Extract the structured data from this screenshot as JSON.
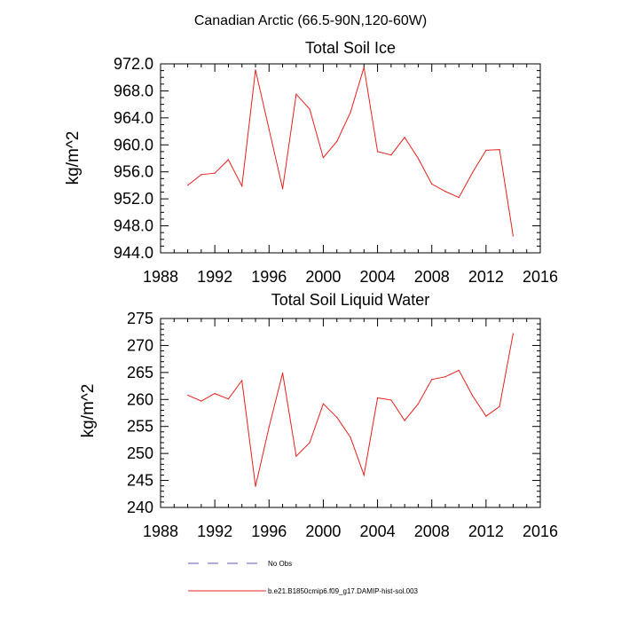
{
  "figure": {
    "title": "Canadian Arctic (66.5-90N,120-60W)"
  },
  "legend": [
    {
      "label": "No Obs",
      "color": "#5a5ab4",
      "dash": "dashed"
    },
    {
      "label": "b.e21.B1850cmip6.f09_g17.DAMIP-hist-sol.003",
      "color": "#e8201c",
      "dash": "solid"
    }
  ],
  "chart_data": [
    {
      "type": "line",
      "title": "Total Soil Ice",
      "xlabel": "",
      "ylabel": "kg/m^2",
      "xlim": [
        1988,
        2016
      ],
      "ylim": [
        944,
        972
      ],
      "xticks": [
        1988,
        1992,
        1996,
        2000,
        2004,
        2008,
        2012,
        2016
      ],
      "xticklabels": [
        "1988",
        "1992",
        "1996",
        "2000",
        "2004",
        "2008",
        "2012",
        "2016"
      ],
      "xminor_step": 1,
      "yticks": [
        944,
        948,
        952,
        956,
        960,
        964,
        968,
        972
      ],
      "yticklabels": [
        "944.0",
        "948.0",
        "952.0",
        "956.0",
        "960.0",
        "964.0",
        "968.0",
        "972.0"
      ],
      "yminor_step": 1,
      "grid": false,
      "series": [
        {
          "color": "#e8201c",
          "x": [
            1990,
            1991,
            1992,
            1993,
            1994,
            1995,
            1996,
            1997,
            1998,
            1999,
            2000,
            2001,
            2002,
            2003,
            2004,
            2005,
            2006,
            2007,
            2008,
            2009,
            2010,
            2011,
            2012,
            2013,
            2014
          ],
          "y": [
            954.0,
            955.6,
            955.8,
            957.8,
            953.9,
            971.1,
            962.3,
            953.5,
            967.5,
            965.3,
            958.1,
            960.5,
            964.8,
            971.5,
            959.0,
            958.5,
            961.1,
            958.0,
            954.2,
            953.1,
            952.2,
            955.9,
            959.2,
            959.3,
            946.5
          ]
        }
      ]
    },
    {
      "type": "line",
      "title": "Total Soil Liquid Water",
      "xlabel": "",
      "ylabel": "kg/m^2",
      "xlim": [
        1988,
        2016
      ],
      "ylim": [
        240,
        275
      ],
      "xticks": [
        1988,
        1992,
        1996,
        2000,
        2004,
        2008,
        2012,
        2016
      ],
      "xticklabels": [
        "1988",
        "1992",
        "1996",
        "2000",
        "2004",
        "2008",
        "2012",
        "2016"
      ],
      "xminor_step": 1,
      "yticks": [
        240,
        245,
        250,
        255,
        260,
        265,
        270,
        275
      ],
      "yticklabels": [
        "240",
        "245",
        "250",
        "255",
        "260",
        "265",
        "270",
        "275"
      ],
      "yminor_step": 1,
      "grid": false,
      "series": [
        {
          "color": "#e8201c",
          "x": [
            1990,
            1991,
            1992,
            1993,
            1994,
            1995,
            1996,
            1997,
            1998,
            1999,
            2000,
            2001,
            2002,
            2003,
            2004,
            2005,
            2006,
            2007,
            2008,
            2009,
            2010,
            2011,
            2012,
            2013,
            2014
          ],
          "y": [
            260.8,
            259.7,
            261.1,
            260.1,
            263.5,
            243.9,
            254.9,
            264.9,
            249.5,
            252.0,
            259.2,
            256.7,
            253.0,
            246.0,
            260.3,
            259.9,
            256.1,
            259.2,
            263.7,
            264.2,
            265.4,
            260.7,
            256.9,
            258.7,
            272.2
          ]
        }
      ]
    }
  ]
}
